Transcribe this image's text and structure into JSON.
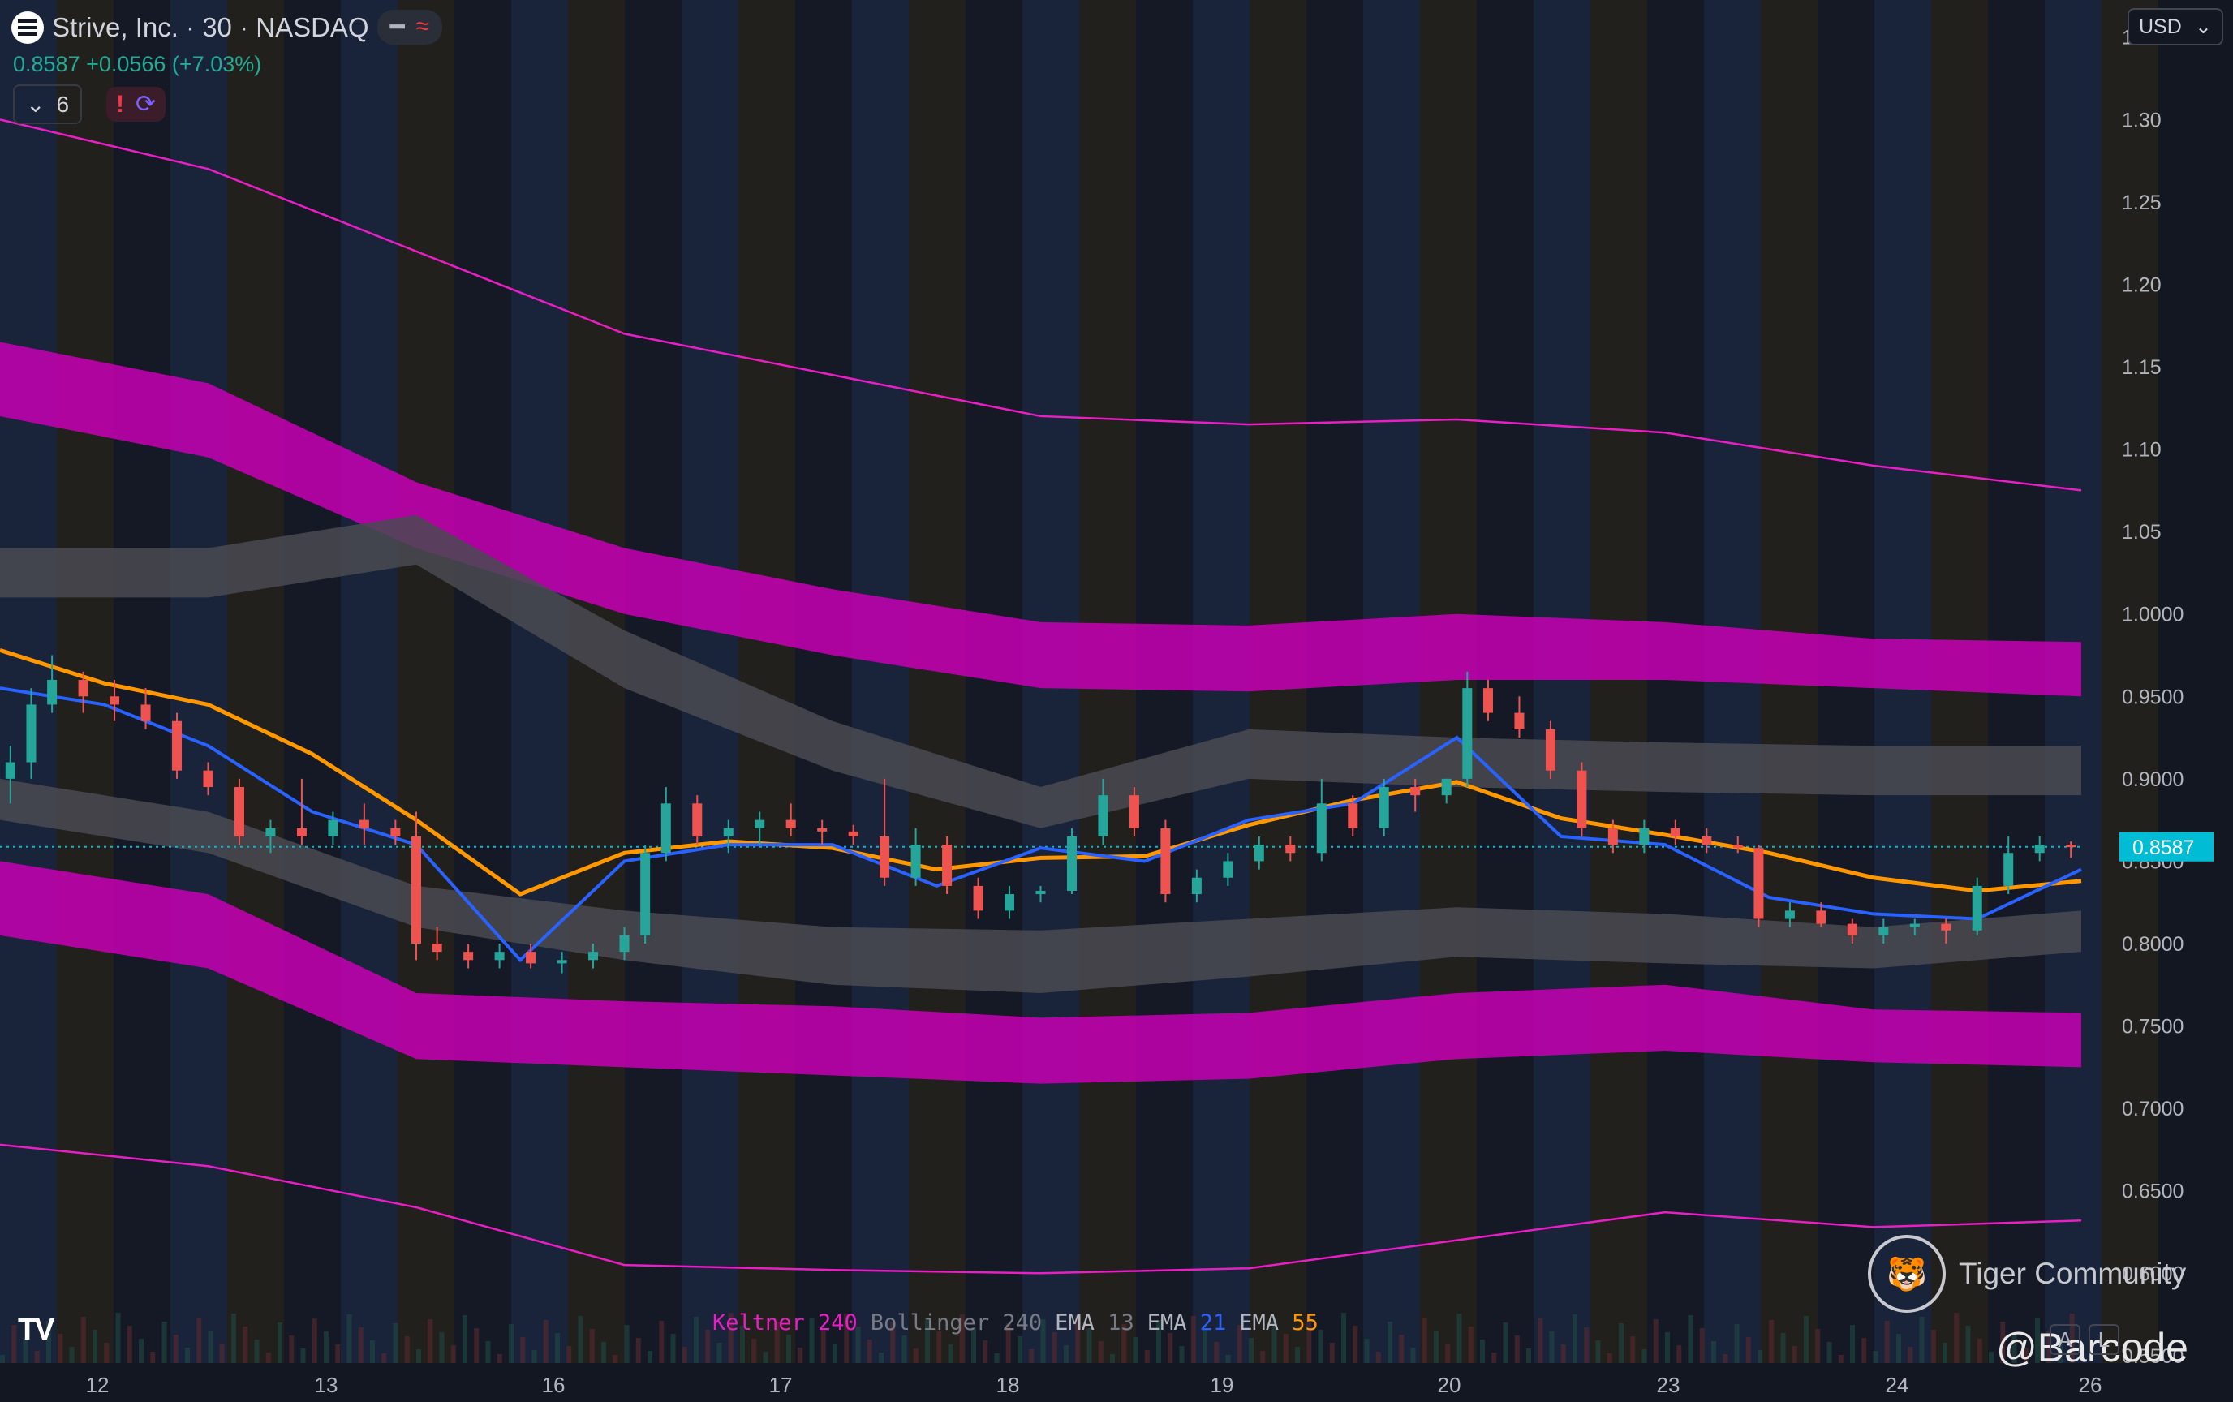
{
  "header": {
    "symbol": "Strive, Inc. · 30 · NASDAQ",
    "quote": "0.8587 +0.0566 (+7.03%)",
    "collapse_count": "6",
    "currency": "USD"
  },
  "legend": [
    {
      "name": "Keltner",
      "param": "240",
      "name_color": "#e91ec4",
      "param_color": "#e91ec4"
    },
    {
      "name": "Bollinger",
      "param": "240",
      "name_color": "#787b86",
      "param_color": "#787b86"
    },
    {
      "name": "EMA",
      "param": "13",
      "name_color": "#b2b5be",
      "param_color": "#787b86"
    },
    {
      "name": "EMA",
      "param": "21",
      "name_color": "#b2b5be",
      "param_color": "#2962ff"
    },
    {
      "name": "EMA",
      "param": "55",
      "name_color": "#b2b5be",
      "param_color": "#ff9800"
    }
  ],
  "watermark": {
    "brand": "Tiger Community",
    "handle": "@Barcode"
  },
  "colors": {
    "up": "#26a69a",
    "down": "#ef5350",
    "keltner": "#e91ec4",
    "bollinger": "#787b86",
    "ema13": "#9598a1",
    "ema21": "#2962ff",
    "ema55": "#ff9800",
    "price_tag": "#00bcd4"
  },
  "chart_data": {
    "type": "line",
    "title": "Strive, Inc. · 30 · NASDAQ",
    "ylim": [
      0.5455,
      1.3725
    ],
    "y_ticks": [
      "1.35",
      "1.30",
      "1.25",
      "1.20",
      "1.15",
      "1.10",
      "1.05",
      "1.0000",
      "0.9500",
      "0.9000",
      "0.8500",
      "0.8000",
      "0.7500",
      "0.7000",
      "0.6500",
      "0.6000",
      "0.5500"
    ],
    "x_ticks": [
      "12",
      "13",
      "16",
      "17",
      "18",
      "19",
      "20",
      "23",
      "24",
      "26"
    ],
    "last_price": "0.8587",
    "grid": false,
    "series": [
      {
        "name": "EMA 55",
        "x": [
          0,
          0.05,
          0.1,
          0.15,
          0.2,
          0.25,
          0.3,
          0.35,
          0.4,
          0.45,
          0.5,
          0.55,
          0.6,
          0.65,
          0.7,
          0.75,
          0.8,
          0.85,
          0.9,
          0.95,
          1
        ],
        "values": [
          0.978,
          0.958,
          0.945,
          0.915,
          0.875,
          0.83,
          0.855,
          0.862,
          0.858,
          0.845,
          0.852,
          0.853,
          0.872,
          0.887,
          0.898,
          0.876,
          0.866,
          0.855,
          0.84,
          0.832,
          0.838
        ]
      },
      {
        "name": "EMA 21",
        "x": [
          0,
          0.05,
          0.1,
          0.15,
          0.2,
          0.25,
          0.3,
          0.35,
          0.4,
          0.45,
          0.5,
          0.55,
          0.6,
          0.65,
          0.7,
          0.75,
          0.8,
          0.85,
          0.9,
          0.95,
          1
        ],
        "values": [
          0.955,
          0.945,
          0.92,
          0.88,
          0.86,
          0.79,
          0.85,
          0.86,
          0.86,
          0.835,
          0.858,
          0.85,
          0.875,
          0.885,
          0.925,
          0.865,
          0.86,
          0.828,
          0.818,
          0.815,
          0.845
        ]
      },
      {
        "name": "Keltner upper outer",
        "x": [
          0,
          0.1,
          0.2,
          0.3,
          0.4,
          0.5,
          0.6,
          0.7,
          0.8,
          0.9,
          1
        ],
        "values": [
          1.3,
          1.27,
          1.22,
          1.17,
          1.145,
          1.12,
          1.115,
          1.118,
          1.11,
          1.09,
          1.075
        ]
      },
      {
        "name": "Keltner lower outer",
        "x": [
          0,
          0.1,
          0.2,
          0.3,
          0.4,
          0.5,
          0.6,
          0.7,
          0.8,
          0.9,
          1
        ],
        "values": [
          0.678,
          0.665,
          0.64,
          0.605,
          0.602,
          0.6,
          0.603,
          0.62,
          0.637,
          0.628,
          0.632
        ]
      }
    ],
    "bands": [
      {
        "name": "Keltner upper band",
        "x": [
          0,
          0.1,
          0.2,
          0.3,
          0.4,
          0.5,
          0.6,
          0.7,
          0.8,
          0.9,
          1
        ],
        "top": [
          1.165,
          1.14,
          1.08,
          1.04,
          1.015,
          0.995,
          0.993,
          1.0,
          0.995,
          0.985,
          0.983
        ],
        "bottom": [
          1.12,
          1.095,
          1.04,
          1.0,
          0.975,
          0.955,
          0.953,
          0.96,
          0.96,
          0.955,
          0.95
        ]
      },
      {
        "name": "Keltner lower band",
        "x": [
          0,
          0.1,
          0.2,
          0.3,
          0.4,
          0.5,
          0.6,
          0.7,
          0.8,
          0.9,
          1
        ],
        "top": [
          0.85,
          0.83,
          0.77,
          0.765,
          0.762,
          0.755,
          0.758,
          0.77,
          0.775,
          0.76,
          0.758
        ],
        "bottom": [
          0.805,
          0.785,
          0.73,
          0.725,
          0.72,
          0.715,
          0.718,
          0.73,
          0.735,
          0.728,
          0.725
        ]
      },
      {
        "name": "Bollinger upper band",
        "x": [
          0,
          0.1,
          0.2,
          0.3,
          0.4,
          0.5,
          0.6,
          0.7,
          0.8,
          0.9,
          1
        ],
        "top": [
          1.04,
          1.04,
          1.06,
          0.99,
          0.935,
          0.895,
          0.93,
          0.925,
          0.922,
          0.92,
          0.92
        ],
        "bottom": [
          1.01,
          1.01,
          1.03,
          0.955,
          0.905,
          0.87,
          0.9,
          0.895,
          0.892,
          0.89,
          0.89
        ]
      },
      {
        "name": "Bollinger lower band",
        "x": [
          0,
          0.1,
          0.2,
          0.3,
          0.4,
          0.5,
          0.6,
          0.7,
          0.8,
          0.9,
          1
        ],
        "top": [
          0.9,
          0.88,
          0.835,
          0.82,
          0.81,
          0.808,
          0.815,
          0.822,
          0.818,
          0.81,
          0.82
        ],
        "bottom": [
          0.875,
          0.855,
          0.81,
          0.79,
          0.775,
          0.77,
          0.78,
          0.792,
          0.788,
          0.785,
          0.795
        ]
      }
    ],
    "candles": [
      {
        "x": 0.005,
        "o": 0.9,
        "h": 0.92,
        "l": 0.885,
        "c": 0.91
      },
      {
        "x": 0.015,
        "o": 0.91,
        "h": 0.955,
        "l": 0.9,
        "c": 0.945
      },
      {
        "x": 0.025,
        "o": 0.945,
        "h": 0.975,
        "l": 0.94,
        "c": 0.96
      },
      {
        "x": 0.04,
        "o": 0.96,
        "h": 0.965,
        "l": 0.94,
        "c": 0.95
      },
      {
        "x": 0.055,
        "o": 0.95,
        "h": 0.96,
        "l": 0.935,
        "c": 0.945
      },
      {
        "x": 0.07,
        "o": 0.945,
        "h": 0.955,
        "l": 0.93,
        "c": 0.935
      },
      {
        "x": 0.085,
        "o": 0.935,
        "h": 0.94,
        "l": 0.9,
        "c": 0.905
      },
      {
        "x": 0.1,
        "o": 0.905,
        "h": 0.91,
        "l": 0.89,
        "c": 0.895
      },
      {
        "x": 0.115,
        "o": 0.895,
        "h": 0.9,
        "l": 0.86,
        "c": 0.865
      },
      {
        "x": 0.13,
        "o": 0.865,
        "h": 0.875,
        "l": 0.855,
        "c": 0.87
      },
      {
        "x": 0.145,
        "o": 0.87,
        "h": 0.9,
        "l": 0.86,
        "c": 0.865
      },
      {
        "x": 0.16,
        "o": 0.865,
        "h": 0.88,
        "l": 0.86,
        "c": 0.875
      },
      {
        "x": 0.175,
        "o": 0.875,
        "h": 0.885,
        "l": 0.86,
        "c": 0.87
      },
      {
        "x": 0.19,
        "o": 0.87,
        "h": 0.875,
        "l": 0.86,
        "c": 0.865
      },
      {
        "x": 0.2,
        "o": 0.865,
        "h": 0.88,
        "l": 0.79,
        "c": 0.8
      },
      {
        "x": 0.21,
        "o": 0.8,
        "h": 0.81,
        "l": 0.79,
        "c": 0.795
      },
      {
        "x": 0.225,
        "o": 0.795,
        "h": 0.8,
        "l": 0.785,
        "c": 0.79
      },
      {
        "x": 0.24,
        "o": 0.79,
        "h": 0.8,
        "l": 0.785,
        "c": 0.795
      },
      {
        "x": 0.255,
        "o": 0.795,
        "h": 0.8,
        "l": 0.785,
        "c": 0.788
      },
      {
        "x": 0.27,
        "o": 0.788,
        "h": 0.795,
        "l": 0.782,
        "c": 0.79
      },
      {
        "x": 0.285,
        "o": 0.79,
        "h": 0.8,
        "l": 0.785,
        "c": 0.795
      },
      {
        "x": 0.3,
        "o": 0.795,
        "h": 0.81,
        "l": 0.79,
        "c": 0.805
      },
      {
        "x": 0.31,
        "o": 0.805,
        "h": 0.86,
        "l": 0.8,
        "c": 0.855
      },
      {
        "x": 0.32,
        "o": 0.855,
        "h": 0.895,
        "l": 0.85,
        "c": 0.885
      },
      {
        "x": 0.335,
        "o": 0.885,
        "h": 0.89,
        "l": 0.86,
        "c": 0.865
      },
      {
        "x": 0.35,
        "o": 0.865,
        "h": 0.875,
        "l": 0.855,
        "c": 0.87
      },
      {
        "x": 0.365,
        "o": 0.87,
        "h": 0.88,
        "l": 0.86,
        "c": 0.875
      },
      {
        "x": 0.38,
        "o": 0.875,
        "h": 0.885,
        "l": 0.865,
        "c": 0.87
      },
      {
        "x": 0.395,
        "o": 0.87,
        "h": 0.875,
        "l": 0.86,
        "c": 0.868
      },
      {
        "x": 0.41,
        "o": 0.868,
        "h": 0.872,
        "l": 0.86,
        "c": 0.865
      },
      {
        "x": 0.425,
        "o": 0.865,
        "h": 0.9,
        "l": 0.835,
        "c": 0.84
      },
      {
        "x": 0.44,
        "o": 0.84,
        "h": 0.87,
        "l": 0.835,
        "c": 0.86
      },
      {
        "x": 0.455,
        "o": 0.86,
        "h": 0.865,
        "l": 0.83,
        "c": 0.835
      },
      {
        "x": 0.47,
        "o": 0.835,
        "h": 0.84,
        "l": 0.815,
        "c": 0.82
      },
      {
        "x": 0.485,
        "o": 0.82,
        "h": 0.835,
        "l": 0.815,
        "c": 0.83
      },
      {
        "x": 0.5,
        "o": 0.83,
        "h": 0.835,
        "l": 0.825,
        "c": 0.832
      },
      {
        "x": 0.515,
        "o": 0.832,
        "h": 0.87,
        "l": 0.83,
        "c": 0.865
      },
      {
        "x": 0.53,
        "o": 0.865,
        "h": 0.9,
        "l": 0.86,
        "c": 0.89
      },
      {
        "x": 0.545,
        "o": 0.89,
        "h": 0.895,
        "l": 0.865,
        "c": 0.87
      },
      {
        "x": 0.56,
        "o": 0.87,
        "h": 0.875,
        "l": 0.825,
        "c": 0.83
      },
      {
        "x": 0.575,
        "o": 0.83,
        "h": 0.845,
        "l": 0.825,
        "c": 0.84
      },
      {
        "x": 0.59,
        "o": 0.84,
        "h": 0.855,
        "l": 0.835,
        "c": 0.85
      },
      {
        "x": 0.605,
        "o": 0.85,
        "h": 0.865,
        "l": 0.845,
        "c": 0.86
      },
      {
        "x": 0.62,
        "o": 0.86,
        "h": 0.865,
        "l": 0.85,
        "c": 0.855
      },
      {
        "x": 0.635,
        "o": 0.855,
        "h": 0.9,
        "l": 0.85,
        "c": 0.885
      },
      {
        "x": 0.65,
        "o": 0.885,
        "h": 0.89,
        "l": 0.865,
        "c": 0.87
      },
      {
        "x": 0.665,
        "o": 0.87,
        "h": 0.9,
        "l": 0.865,
        "c": 0.895
      },
      {
        "x": 0.68,
        "o": 0.895,
        "h": 0.9,
        "l": 0.88,
        "c": 0.89
      },
      {
        "x": 0.695,
        "o": 0.89,
        "h": 0.9,
        "l": 0.885,
        "c": 0.9
      },
      {
        "x": 0.705,
        "o": 0.9,
        "h": 0.965,
        "l": 0.895,
        "c": 0.955
      },
      {
        "x": 0.715,
        "o": 0.955,
        "h": 0.96,
        "l": 0.935,
        "c": 0.94
      },
      {
        "x": 0.73,
        "o": 0.94,
        "h": 0.95,
        "l": 0.925,
        "c": 0.93
      },
      {
        "x": 0.745,
        "o": 0.93,
        "h": 0.935,
        "l": 0.9,
        "c": 0.905
      },
      {
        "x": 0.76,
        "o": 0.905,
        "h": 0.91,
        "l": 0.865,
        "c": 0.87
      },
      {
        "x": 0.775,
        "o": 0.87,
        "h": 0.875,
        "l": 0.855,
        "c": 0.86
      },
      {
        "x": 0.79,
        "o": 0.86,
        "h": 0.875,
        "l": 0.855,
        "c": 0.87
      },
      {
        "x": 0.805,
        "o": 0.87,
        "h": 0.875,
        "l": 0.86,
        "c": 0.865
      },
      {
        "x": 0.82,
        "o": 0.865,
        "h": 0.87,
        "l": 0.855,
        "c": 0.86
      },
      {
        "x": 0.835,
        "o": 0.86,
        "h": 0.865,
        "l": 0.855,
        "c": 0.858
      },
      {
        "x": 0.845,
        "o": 0.858,
        "h": 0.86,
        "l": 0.81,
        "c": 0.815
      },
      {
        "x": 0.86,
        "o": 0.815,
        "h": 0.825,
        "l": 0.81,
        "c": 0.82
      },
      {
        "x": 0.875,
        "o": 0.82,
        "h": 0.825,
        "l": 0.81,
        "c": 0.812
      },
      {
        "x": 0.89,
        "o": 0.812,
        "h": 0.815,
        "l": 0.8,
        "c": 0.805
      },
      {
        "x": 0.905,
        "o": 0.805,
        "h": 0.815,
        "l": 0.8,
        "c": 0.81
      },
      {
        "x": 0.92,
        "o": 0.81,
        "h": 0.815,
        "l": 0.805,
        "c": 0.812
      },
      {
        "x": 0.935,
        "o": 0.812,
        "h": 0.815,
        "l": 0.8,
        "c": 0.808
      },
      {
        "x": 0.95,
        "o": 0.808,
        "h": 0.84,
        "l": 0.805,
        "c": 0.835
      },
      {
        "x": 0.965,
        "o": 0.835,
        "h": 0.865,
        "l": 0.83,
        "c": 0.855
      },
      {
        "x": 0.98,
        "o": 0.855,
        "h": 0.865,
        "l": 0.85,
        "c": 0.86
      },
      {
        "x": 0.995,
        "o": 0.86,
        "h": 0.862,
        "l": 0.852,
        "c": 0.8587
      }
    ]
  }
}
